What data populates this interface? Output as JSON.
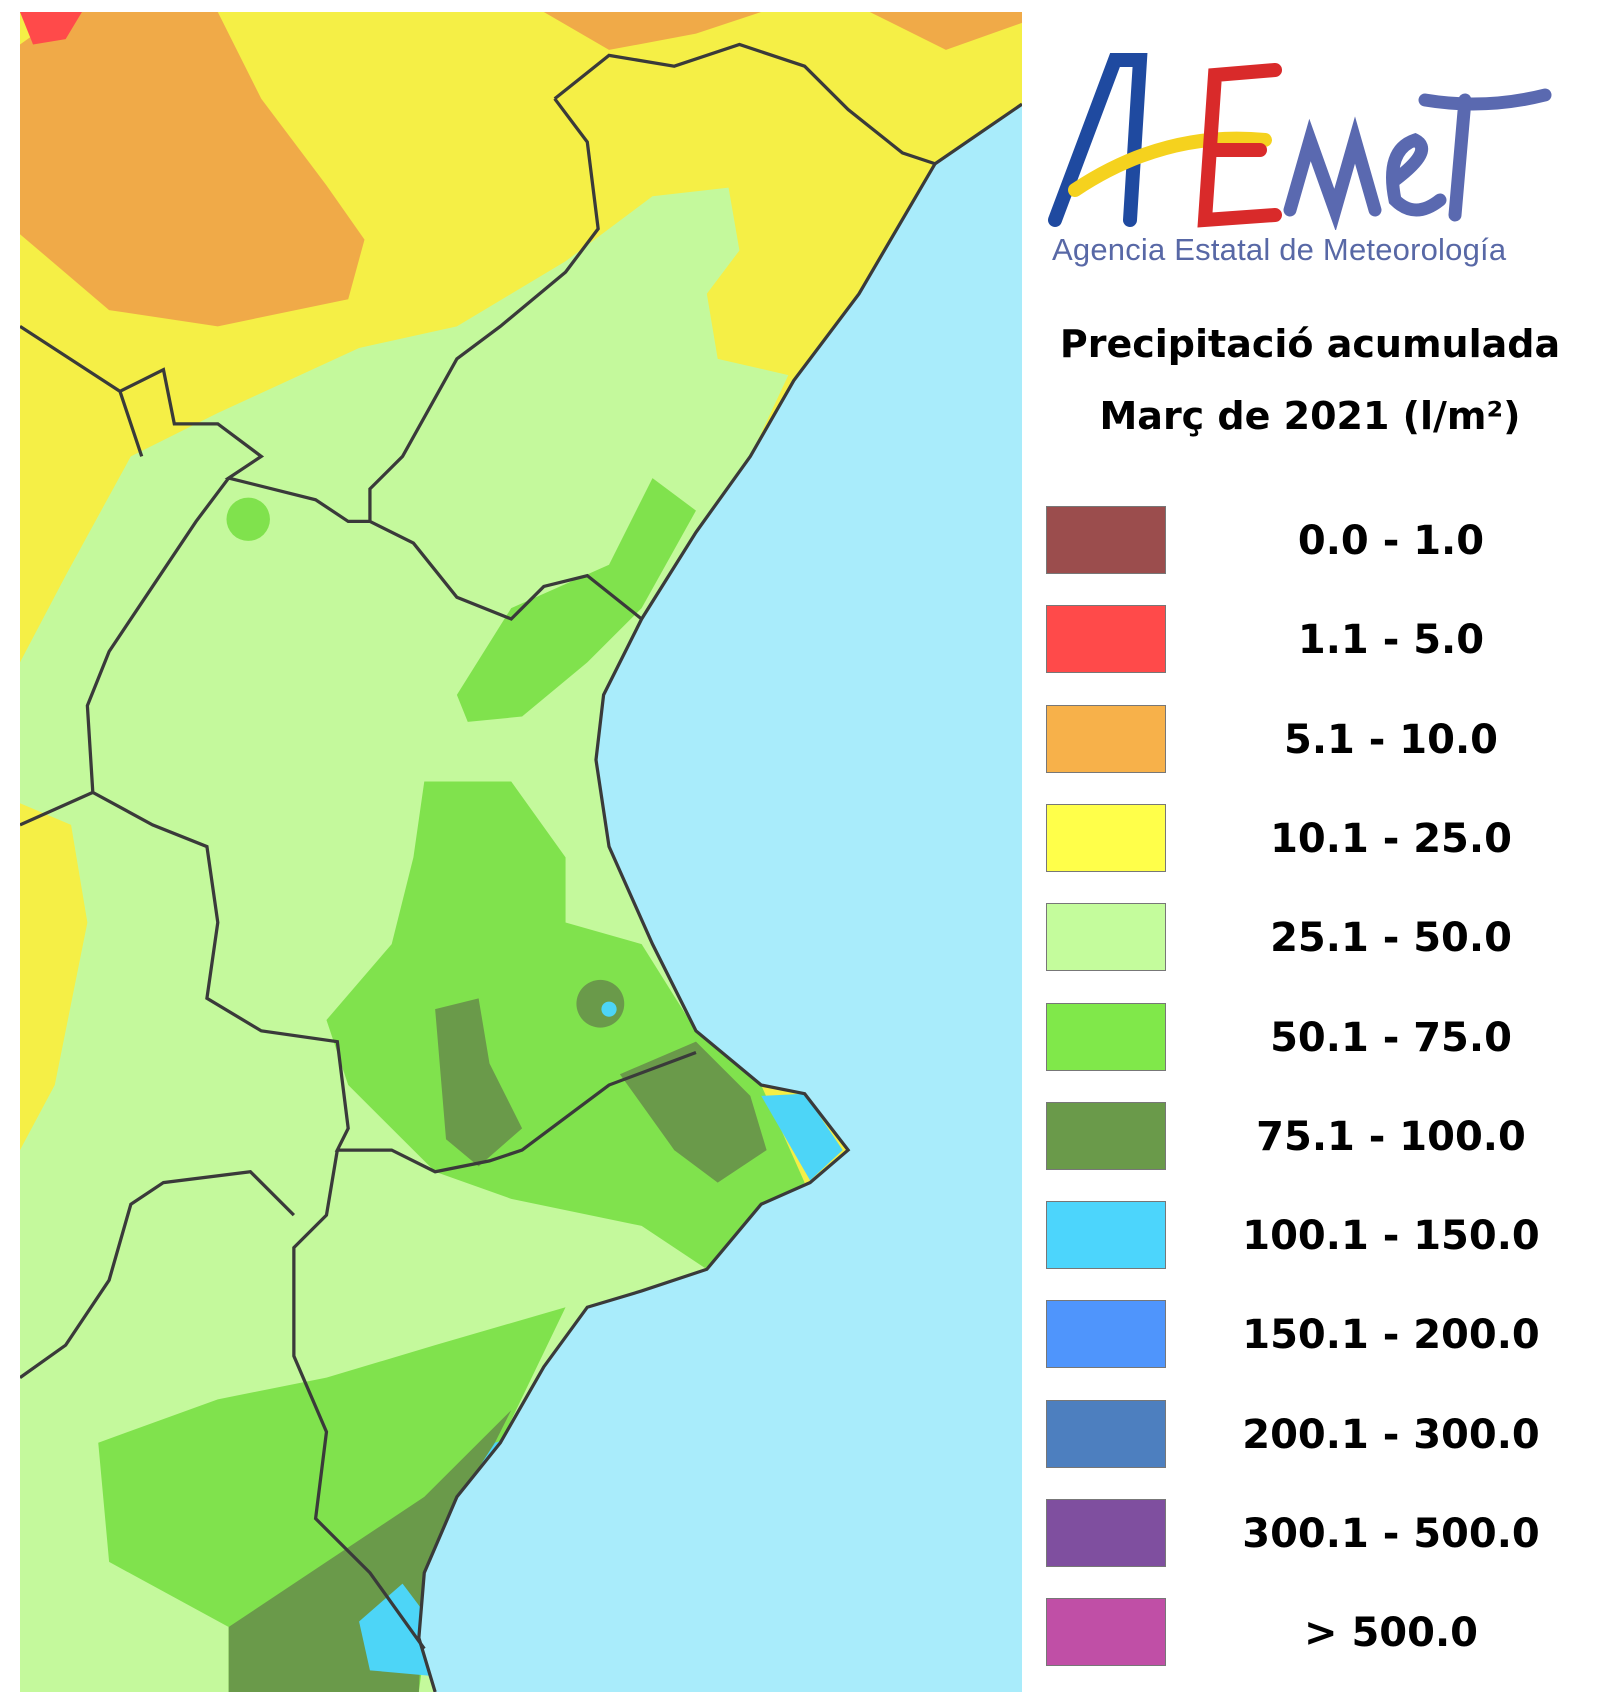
{
  "logo": {
    "brand": "AEMet",
    "subtitle": "Agencia Estatal de Meteorología"
  },
  "title": {
    "line1": "Precipitació acumulada",
    "line2": "Març de 2021 (l/m²)"
  },
  "legend": [
    {
      "label": "0.0 - 1.0",
      "color": "#9b4d4d"
    },
    {
      "label": "1.1 - 5.0",
      "color": "#ff4a4a"
    },
    {
      "label": "5.1 - 10.0",
      "color": "#f7b14a"
    },
    {
      "label": "10.1 - 25.0",
      "color": "#ffff4a"
    },
    {
      "label": "25.1 - 50.0",
      "color": "#c4fc9c"
    },
    {
      "label": "50.1 - 75.0",
      "color": "#80e84a"
    },
    {
      "label": "75.1 - 100.0",
      "color": "#6a9a4a"
    },
    {
      "label": "100.1 - 150.0",
      "color": "#4cd5fc"
    },
    {
      "label": "150.1 - 200.0",
      "color": "#4f95fc"
    },
    {
      "label": "200.1 - 300.0",
      "color": "#4d7fbf"
    },
    {
      "label": "300.1 - 500.0",
      "color": "#7f4f9f"
    },
    {
      "label": "> 500.0",
      "color": "#c04fa6"
    }
  ],
  "map_colors": {
    "sea": "#a9ecfb",
    "border": "#3a3a3a"
  }
}
